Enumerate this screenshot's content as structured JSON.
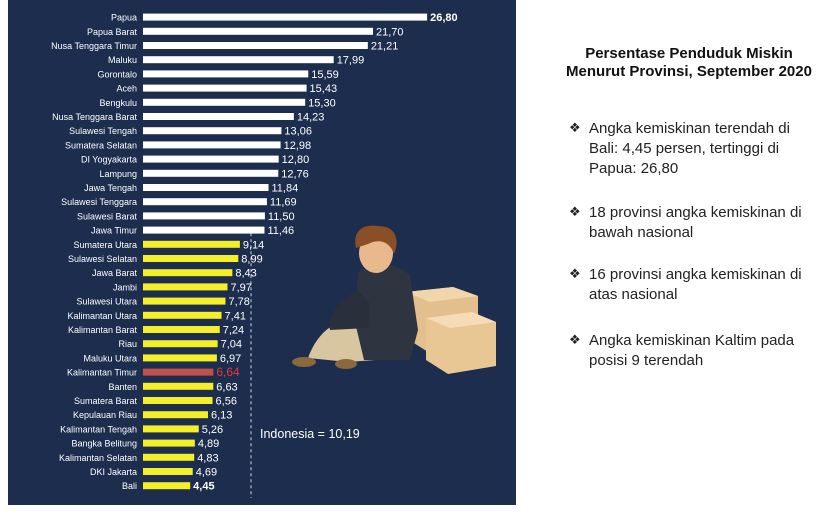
{
  "chart_data": {
    "type": "bar",
    "orientation": "horizontal",
    "categories": [
      "Papua",
      "Papua Barat",
      "Nusa Tenggara Timur",
      "Maluku",
      "Gorontalo",
      "Aceh",
      "Bengkulu",
      "Nusa Tenggara Barat",
      "Sulawesi Tengah",
      "Sumatera Selatan",
      "DI Yogyakarta",
      "Lampung",
      "Jawa Tengah",
      "Sulawesi Tenggara",
      "Sulawesi Barat",
      "Jawa Timur",
      "Sumatera Utara",
      "Sulawesi Selatan",
      "Jawa Barat",
      "Jambi",
      "Sulawesi Utara",
      "Kalimantan Utara",
      "Kalimantan Barat",
      "Riau",
      "Maluku Utara",
      "Kalimantan Timur",
      "Banten",
      "Sumatera Barat",
      "Kepulauan Riau",
      "Kalimantan Tengah",
      "Bangka Belitung",
      "Kalimantan Selatan",
      "DKI Jakarta",
      "Bali"
    ],
    "values": [
      26.8,
      21.7,
      21.21,
      17.99,
      15.59,
      15.43,
      15.3,
      14.23,
      13.06,
      12.98,
      12.8,
      12.76,
      11.84,
      11.69,
      11.5,
      11.46,
      9.14,
      8.99,
      8.43,
      7.97,
      7.78,
      7.41,
      7.24,
      7.04,
      6.97,
      6.64,
      6.63,
      6.56,
      6.13,
      5.26,
      4.89,
      4.83,
      4.69,
      4.45
    ],
    "value_labels": [
      "26,80",
      "21,70",
      "21,21",
      "17,99",
      "15,59",
      "15,43",
      "15,30",
      "14,23",
      "13,06",
      "12,98",
      "12,80",
      "12,76",
      "11,84",
      "11,69",
      "11,50",
      "11,46",
      "9,14",
      "8,99",
      "8,43",
      "7,97",
      "7,78",
      "7,41",
      "7,24",
      "7,04",
      "6,97",
      "6,64",
      "6,63",
      "6,56",
      "6,13",
      "5,26",
      "4,89",
      "4,83",
      "4,69",
      "4,45"
    ],
    "bar_colors": [
      "#ffffff",
      "#ffffff",
      "#ffffff",
      "#ffffff",
      "#ffffff",
      "#ffffff",
      "#ffffff",
      "#ffffff",
      "#ffffff",
      "#ffffff",
      "#ffffff",
      "#ffffff",
      "#ffffff",
      "#ffffff",
      "#ffffff",
      "#ffffff",
      "#f5ef2a",
      "#f5ef2a",
      "#f5ef2a",
      "#f5ef2a",
      "#f5ef2a",
      "#f5ef2a",
      "#f5ef2a",
      "#f5ef2a",
      "#f5ef2a",
      "#c0504d",
      "#f5ef2a",
      "#f5ef2a",
      "#f5ef2a",
      "#f5ef2a",
      "#f5ef2a",
      "#f5ef2a",
      "#f5ef2a",
      "#f5ef2a"
    ],
    "label_colors": [
      "#ffffff",
      "#ffffff",
      "#ffffff",
      "#ffffff",
      "#ffffff",
      "#ffffff",
      "#ffffff",
      "#ffffff",
      "#ffffff",
      "#ffffff",
      "#ffffff",
      "#ffffff",
      "#ffffff",
      "#ffffff",
      "#ffffff",
      "#ffffff",
      "#ffffff",
      "#ffffff",
      "#ffffff",
      "#ffffff",
      "#ffffff",
      "#ffffff",
      "#ffffff",
      "#ffffff",
      "#ffffff",
      "#e53935",
      "#ffffff",
      "#ffffff",
      "#ffffff",
      "#ffffff",
      "#ffffff",
      "#ffffff",
      "#ffffff",
      "#ffffff"
    ],
    "bold_value_labels": [
      0,
      33
    ],
    "reference_line": {
      "value": 10.19,
      "label": "Indonesia = 10,19",
      "style": "dashed"
    },
    "xlim": [
      0,
      28
    ],
    "grid": false,
    "background": "#1c2d4e"
  },
  "right_panel": {
    "title": "Persentase Penduduk Miskin Menurut Provinsi, September 2020",
    "bullet_icon": "four-diamond-bullet-icon",
    "bullets": [
      "Angka kemiskinan terendah di Bali: 4,45 persen, tertinggi di Papua: 26,80",
      "18 provinsi angka kemiskinan di bawah nasional",
      "16 provinsi angka kemiskinan di atas nasional",
      "Angka kemiskinan Kaltim pada posisi 9 terendah"
    ]
  },
  "illustration": {
    "name": "sad-person-sitting-with-boxes-illustration"
  }
}
